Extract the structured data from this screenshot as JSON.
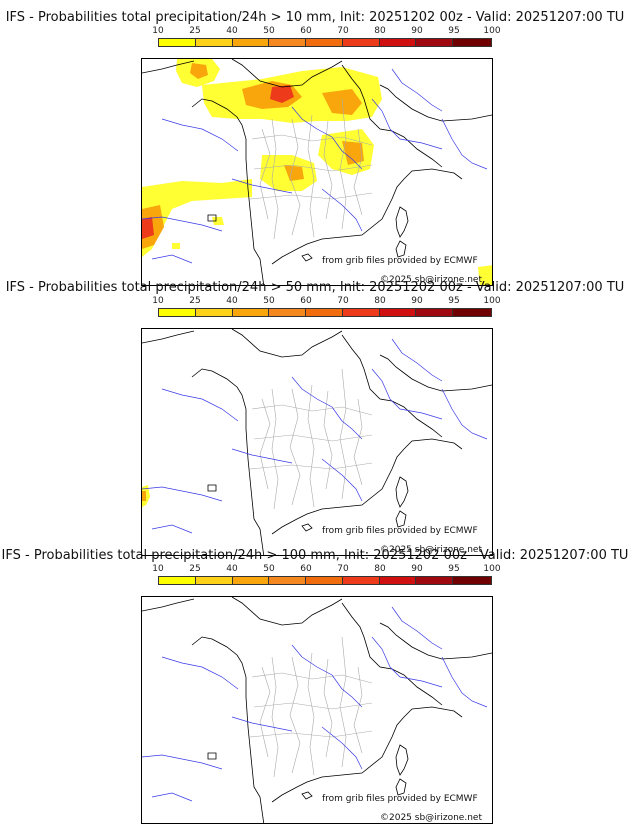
{
  "scale": {
    "ticks": [
      "10",
      "25",
      "40",
      "50",
      "60",
      "70",
      "80",
      "90",
      "95",
      "100"
    ],
    "colors": [
      "#ffff00",
      "#ffd21a",
      "#f8a60c",
      "#f4881e",
      "#f06c0c",
      "#ec3a1a",
      "#d01010",
      "#a00810",
      "#700000"
    ]
  },
  "panels": [
    {
      "title": "IFS - Probabilities total precipitation/24h > 10 mm, Init: 20251202 00z - Valid: 20251207:00 TU",
      "credit_source": "from grib files provided by ECMWF",
      "credit_copyright": "©2025 sb@irizone.net"
    },
    {
      "title": "IFS - Probabilities total precipitation/24h > 50 mm, Init: 20251202 00z - Valid: 20251207:00 TU",
      "credit_source": "from grib files provided by ECMWF",
      "credit_copyright": "©2025 sb@irizone.net"
    },
    {
      "title": "IFS - Probabilities total precipitation/24h > 100 mm, Init: 20251202 00z - Valid: 20251207:00 TU",
      "credit_source": "from grib files provided by ECMWF",
      "credit_copyright": "©2025 sb@irizone.net"
    }
  ]
}
